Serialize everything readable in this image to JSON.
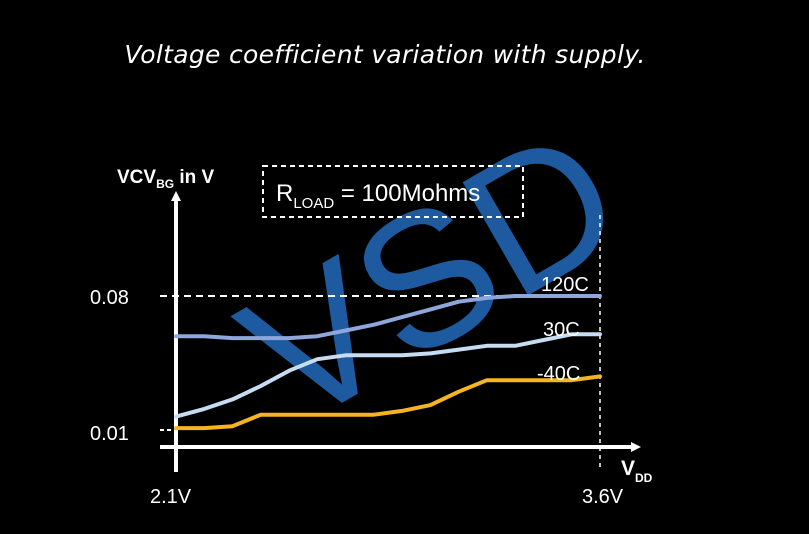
{
  "title": "Voltage coefficient variation with supply.",
  "watermark": "VSD",
  "annotation": {
    "prefix": "R",
    "sub": "LOAD",
    "rest": " = 100Mohms"
  },
  "colors": {
    "background": "#000000",
    "axes": "#ffffff",
    "watermark": "#1f5fa8",
    "series_120C": "#8fa6dc",
    "series_30C": "#c6dcf3",
    "series_m40C": "#f5b521"
  },
  "chart_data": {
    "type": "line",
    "ylabel": {
      "main": "VCV",
      "sub": "BG",
      "rest": " in V"
    },
    "xlabel": {
      "main": "V",
      "sub": "DD"
    },
    "x_ticks": [
      "2.1V",
      "3.6V"
    ],
    "y_ticks": [
      "0.08",
      "0.01"
    ],
    "xlim": [
      2.1,
      3.6
    ],
    "ylim": [
      0.01,
      0.08
    ],
    "series": [
      {
        "name": "120C",
        "color": "#8fa6dc",
        "x": [
          2.1,
          2.2,
          2.3,
          2.4,
          2.5,
          2.6,
          2.7,
          2.8,
          2.9,
          3.0,
          3.1,
          3.2,
          3.3,
          3.4,
          3.5,
          3.6
        ],
        "y": [
          0.059,
          0.059,
          0.058,
          0.058,
          0.058,
          0.059,
          0.062,
          0.065,
          0.069,
          0.073,
          0.077,
          0.079,
          0.08,
          0.08,
          0.08,
          0.08
        ]
      },
      {
        "name": "30C",
        "color": "#c6dcf3",
        "x": [
          2.1,
          2.2,
          2.3,
          2.4,
          2.5,
          2.6,
          2.7,
          2.8,
          2.9,
          3.0,
          3.1,
          3.2,
          3.3,
          3.4,
          3.5,
          3.6
        ],
        "y": [
          0.017,
          0.021,
          0.026,
          0.033,
          0.041,
          0.047,
          0.049,
          0.049,
          0.049,
          0.05,
          0.052,
          0.054,
          0.054,
          0.057,
          0.06,
          0.06
        ]
      },
      {
        "name": "-40C",
        "color": "#f5b521",
        "x": [
          2.1,
          2.2,
          2.3,
          2.4,
          2.5,
          2.6,
          2.7,
          2.8,
          2.9,
          3.0,
          3.1,
          3.2,
          3.3,
          3.4,
          3.5,
          3.6
        ],
        "y": [
          0.011,
          0.011,
          0.012,
          0.018,
          0.018,
          0.018,
          0.018,
          0.018,
          0.02,
          0.023,
          0.03,
          0.036,
          0.036,
          0.036,
          0.036,
          0.038
        ]
      }
    ]
  }
}
